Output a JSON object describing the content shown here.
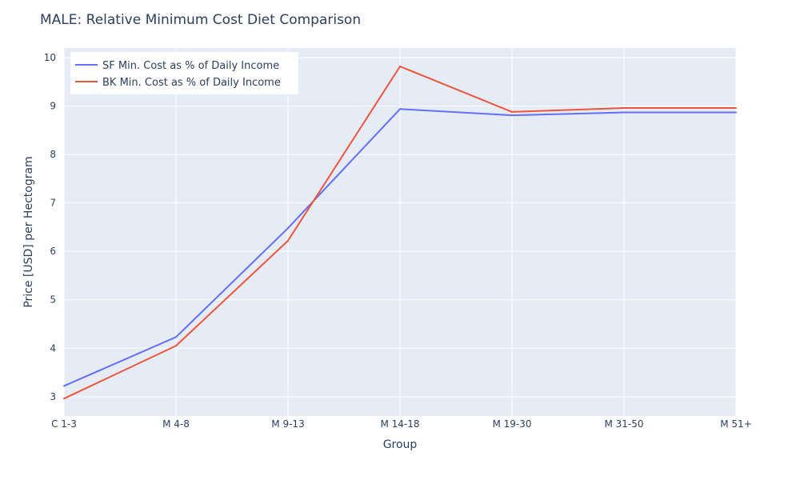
{
  "chart_data": {
    "type": "line",
    "title": "MALE: Relative Minimum Cost Diet Comparison",
    "xlabel": "Group",
    "ylabel": "Price [USD] per Hectogram",
    "categories": [
      "C 1-3",
      "M 4-8",
      "M 9-13",
      "M 14-18",
      "M 19-30",
      "M 31-50",
      "M 51+"
    ],
    "ylim": [
      2.6,
      10.2
    ],
    "yticks": [
      3,
      4,
      5,
      6,
      7,
      8,
      9,
      10
    ],
    "grid": true,
    "legend_position": "top-left",
    "series": [
      {
        "name": "SF Min. Cost as % of Daily Income",
        "color": "#636efa",
        "values": [
          3.22,
          4.23,
          6.48,
          8.94,
          8.81,
          8.87,
          8.87
        ]
      },
      {
        "name": "BK Min. Cost as % of Daily Income",
        "color": "#ef553b",
        "values": [
          2.96,
          4.05,
          6.22,
          9.82,
          8.88,
          8.96,
          8.96
        ]
      }
    ]
  },
  "colors": {
    "plot_background": "#e5ecf6",
    "grid": "#ffffff",
    "text": "#2a3f5f"
  }
}
